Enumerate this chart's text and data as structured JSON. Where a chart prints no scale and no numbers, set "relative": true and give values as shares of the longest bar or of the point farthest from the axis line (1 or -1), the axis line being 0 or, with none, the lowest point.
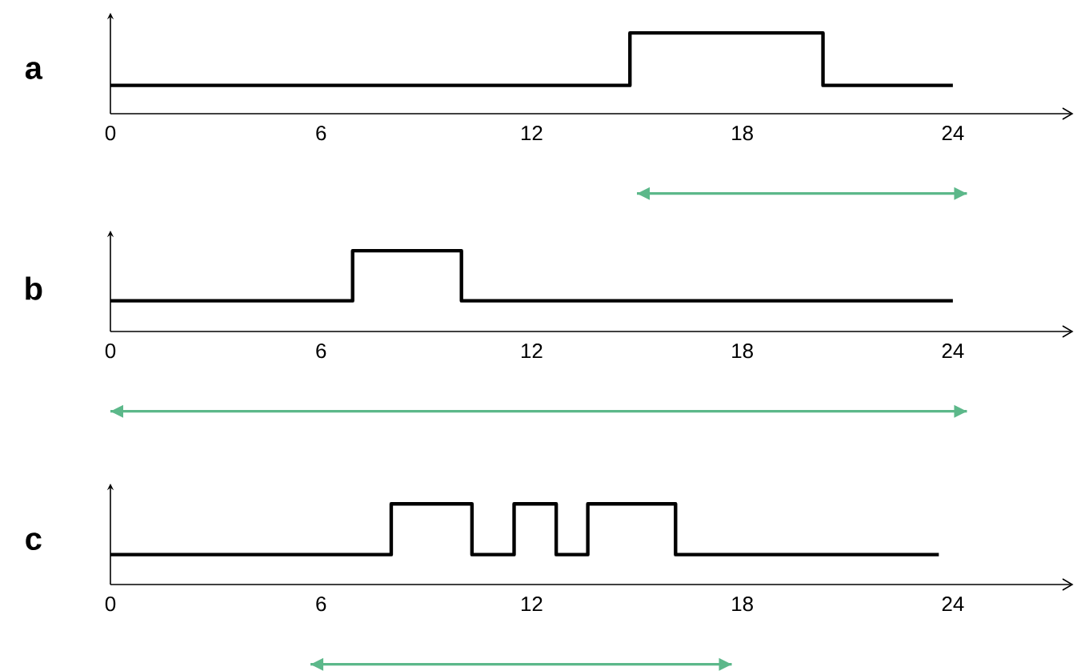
{
  "chart_data": [
    {
      "type": "step",
      "title": "a",
      "relative": true,
      "xlim": [
        0,
        27.4
      ],
      "xticks": [
        0,
        6,
        12,
        18,
        24
      ],
      "grid": false,
      "series": [
        {
          "color": "#000000",
          "x": [
            0,
            14.8,
            20.3,
            24
          ],
          "values": [
            0.35,
            1,
            0.35,
            0.35
          ]
        },
        {
          "type": "line",
          "color": "#5cb88a",
          "x": [
            15,
            24.4
          ],
          "values": [
            -0.99,
            -0.99
          ]
        }
      ]
    },
    {
      "type": "step",
      "title": "b",
      "relative": true,
      "xlim": [
        0,
        27.4
      ],
      "xticks": [
        0,
        6,
        12,
        18,
        24
      ],
      "grid": false,
      "series": [
        {
          "color": "#000000",
          "x": [
            0,
            6.9,
            10,
            24
          ],
          "values": [
            0.38,
            1,
            0.38,
            0.38
          ]
        },
        {
          "type": "line",
          "color": "#5cb88a",
          "x": [
            0,
            24.4
          ],
          "values": [
            -0.99,
            -0.99
          ]
        }
      ]
    },
    {
      "type": "step",
      "title": "c",
      "relative": true,
      "xlim": [
        0,
        27.4
      ],
      "xticks": [
        0,
        6,
        12,
        18,
        24
      ],
      "grid": false,
      "series": [
        {
          "color": "#000000",
          "x": [
            0,
            8,
            10.3,
            11.5,
            12.7,
            13.6,
            16.1,
            23.6
          ],
          "values": [
            0.37,
            1,
            0.37,
            1,
            0.37,
            1,
            0.37,
            0.37
          ]
        },
        {
          "type": "line",
          "color": "#5cb88a",
          "x": [
            5.7,
            17.7
          ],
          "values": [
            -0.99,
            -0.99
          ]
        }
      ]
    }
  ]
}
